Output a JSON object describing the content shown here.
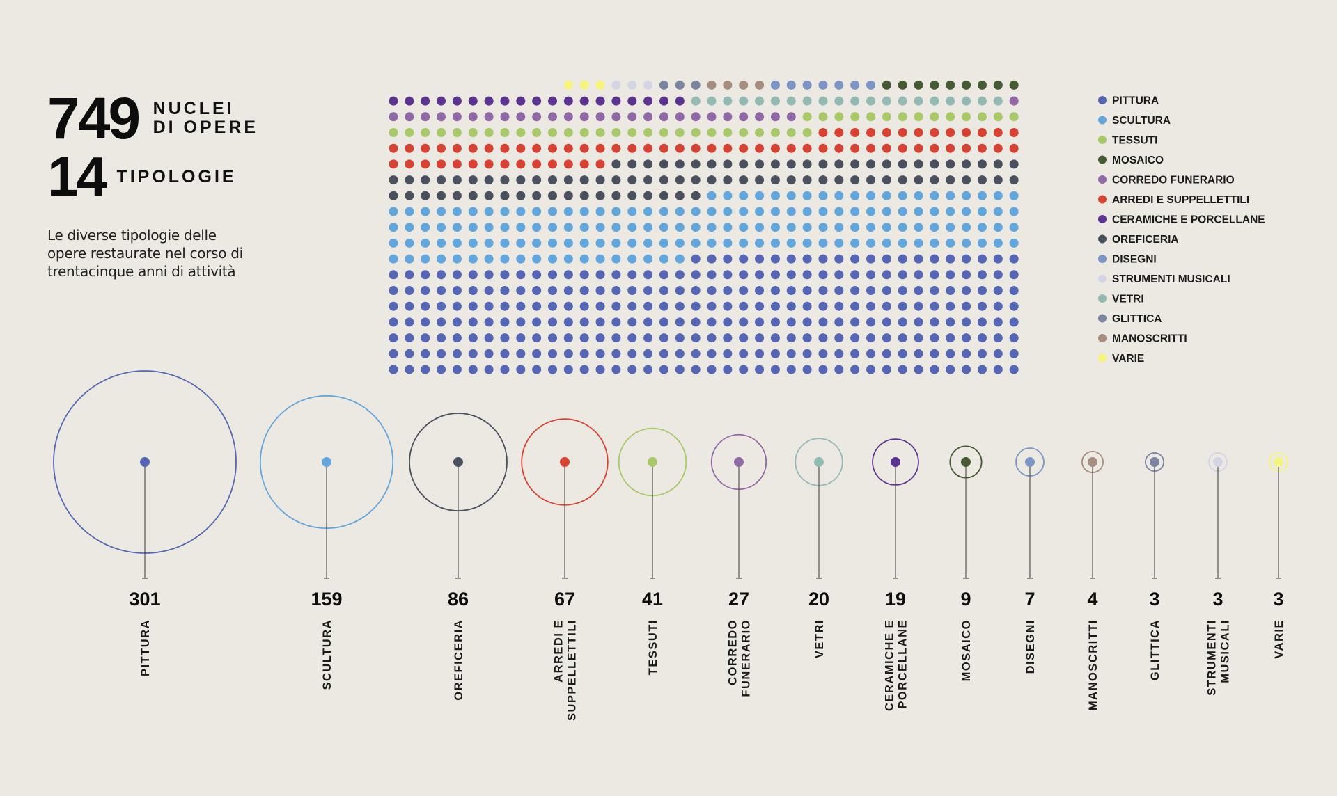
{
  "summary": {
    "works_number": "749",
    "works_label": "NUCLEI\nDI OPERE",
    "types_number": "14",
    "types_label": "TIPOLOGIE",
    "description": "Le diverse tipologie delle opere restaurate nel corso di trentacinque anni di attività"
  },
  "colors": {
    "background": "#ece9e3",
    "PITTURA": "#5566b5",
    "SCULTURA": "#63a6dc",
    "TESSUTI": "#a8c86a",
    "MOSAICO": "#465a35",
    "CORREDO FUNERARIO": "#9068a6",
    "ARREDI E SUPPELLETTILI": "#d84232",
    "CERAMICHE E PORCELLANE": "#5b3490",
    "OREFICERIA": "#4a505e",
    "DISEGNI": "#7d95c4",
    "STRUMENTI MUSICALI": "#d3d4e4",
    "VETRI": "#93b9b3",
    "GLITTICA": "#7b84a0",
    "MANOSCRITTI": "#a58e80",
    "VARIE": "#f5f57e"
  },
  "chart_data": [
    {
      "type": "waffle",
      "title": "",
      "categories": [
        "PITTURA",
        "SCULTURA",
        "OREFICERIA",
        "ARREDI E SUPPELLETTILI",
        "TESSUTI",
        "CORREDO FUNERARIO",
        "VETRI",
        "CERAMICHE E PORCELLANE",
        "MOSAICO",
        "DISEGNI",
        "MANOSCRITTI",
        "GLITTICA",
        "STRUMENTI MUSICALI",
        "VARIE"
      ],
      "values": [
        301,
        159,
        86,
        67,
        41,
        27,
        20,
        19,
        9,
        7,
        4,
        3,
        3,
        3
      ],
      "grid_columns": 40,
      "fill_order": "bottom-up from right",
      "legend": {
        "position": "right",
        "entries": [
          "PITTURA",
          "SCULTURA",
          "TESSUTI",
          "MOSAICO",
          "CORREDO FUNERARIO",
          "ARREDI E SUPPELLETTILI",
          "CERAMICHE E PORCELLANE",
          "OREFICERIA",
          "DISEGNI",
          "STRUMENTI MUSICALI",
          "VETRI",
          "GLITTICA",
          "MANOSCRITTI",
          "VARIE"
        ]
      }
    },
    {
      "type": "bubble",
      "title": "",
      "categories": [
        "PITTURA",
        "SCULTURA",
        "OREFICERIA",
        "ARREDI E SUPPELLETTILI",
        "TESSUTI",
        "CORREDO FUNERARIO",
        "VETRI",
        "CERAMICHE E PORCELLANE",
        "MOSAICO",
        "DISEGNI",
        "MANOSCRITTI",
        "GLITTICA",
        "STRUMENTI MUSICALI",
        "VARIE"
      ],
      "labels": [
        "PITTURA",
        "SCULTURA",
        "OREFICERIA",
        "ARREDI E\nSUPPELLETTILI",
        "TESSUTI",
        "CORREDO\nFUNERARIO",
        "VETRI",
        "CERAMICHE E\nPORCELLANE",
        "MOSAICO",
        "DISEGNI",
        "MANOSCRITTI",
        "GLITTICA",
        "STRUMENTI\nMUSICALI",
        "VARIE"
      ],
      "values": [
        301,
        159,
        86,
        67,
        41,
        27,
        20,
        19,
        9,
        7,
        4,
        3,
        3,
        3
      ],
      "area_proportional": true
    }
  ]
}
